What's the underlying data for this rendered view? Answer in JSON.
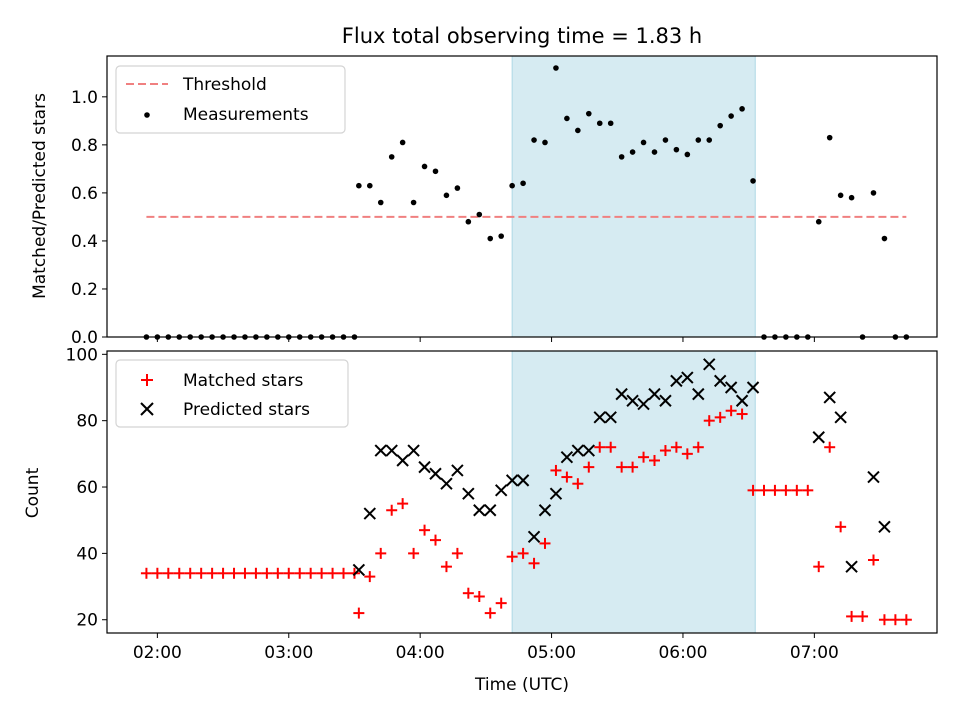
{
  "title": "Flux total observing time = 1.83 h",
  "colors": {
    "threshold": "#f08080",
    "measurement": "#000000",
    "matched": "#ff0000",
    "predicted": "#000000",
    "shade": "#add8e6"
  },
  "chart_data": [
    {
      "type": "scatter",
      "ylabel": "Matched/Predicted stars",
      "ylim": [
        0,
        1.17
      ],
      "yticks": [
        "0.0",
        "0.2",
        "0.4",
        "0.6",
        "0.8",
        "1.0"
      ],
      "shaded_interval": [
        "04:42",
        "06:33"
      ],
      "legend": {
        "placement": "top-left",
        "entries": [
          "Threshold",
          "Measurements"
        ]
      },
      "threshold": {
        "name": "Threshold",
        "value": 0.5,
        "x_range": [
          "01:55",
          "07:42"
        ]
      },
      "series": [
        {
          "name": "Measurements",
          "x": [
            "01:55",
            "02:00",
            "02:05",
            "02:10",
            "02:15",
            "02:20",
            "02:25",
            "02:30",
            "02:35",
            "02:40",
            "02:45",
            "02:50",
            "02:55",
            "03:00",
            "03:05",
            "03:10",
            "03:15",
            "03:20",
            "03:25",
            "03:30",
            "03:32",
            "03:37",
            "03:42",
            "03:47",
            "03:52",
            "03:57",
            "04:02",
            "04:07",
            "04:12",
            "04:17",
            "04:22",
            "04:27",
            "04:32",
            "04:37",
            "04:42",
            "04:47",
            "04:52",
            "04:57",
            "05:02",
            "05:07",
            "05:12",
            "05:17",
            "05:22",
            "05:27",
            "05:32",
            "05:37",
            "05:42",
            "05:47",
            "05:52",
            "05:57",
            "06:02",
            "06:07",
            "06:12",
            "06:17",
            "06:22",
            "06:27",
            "06:32",
            "06:37",
            "06:42",
            "06:47",
            "06:52",
            "06:57",
            "07:02",
            "07:07",
            "07:12",
            "07:17",
            "07:22",
            "07:27",
            "07:32",
            "07:37",
            "07:42"
          ],
          "y": [
            0,
            0,
            0,
            0,
            0,
            0,
            0,
            0,
            0,
            0,
            0,
            0,
            0,
            0,
            0,
            0,
            0,
            0,
            0,
            0,
            0.63,
            0.63,
            0.56,
            0.75,
            0.81,
            0.56,
            0.71,
            0.69,
            0.59,
            0.62,
            0.48,
            0.51,
            0.41,
            0.42,
            0.63,
            0.64,
            0.82,
            0.81,
            1.12,
            0.91,
            0.86,
            0.93,
            0.89,
            0.89,
            0.75,
            0.77,
            0.81,
            0.77,
            0.82,
            0.78,
            0.76,
            0.82,
            0.82,
            0.88,
            0.92,
            0.95,
            0.65,
            0,
            0,
            0,
            0,
            0,
            0.48,
            0.83,
            0.59,
            0.58,
            0,
            0.6,
            0.41,
            0,
            0
          ]
        }
      ]
    },
    {
      "type": "scatter",
      "xlabel": "Time (UTC)",
      "ylabel": "Count",
      "xticks": [
        "02:00",
        "03:00",
        "04:00",
        "05:00",
        "06:00",
        "07:00"
      ],
      "xlim": [
        "01:37",
        "07:56"
      ],
      "ylim": [
        16,
        101
      ],
      "yticks": [
        "20",
        "40",
        "60",
        "80",
        "100"
      ],
      "shaded_interval": [
        "04:42",
        "06:33"
      ],
      "legend": {
        "placement": "top-left",
        "entries": [
          "Matched stars",
          "Predicted stars"
        ]
      },
      "series": [
        {
          "name": "Matched stars",
          "marker": "plus",
          "x": [
            "01:55",
            "02:00",
            "02:05",
            "02:10",
            "02:15",
            "02:20",
            "02:25",
            "02:30",
            "02:35",
            "02:40",
            "02:45",
            "02:50",
            "02:55",
            "03:00",
            "03:05",
            "03:10",
            "03:15",
            "03:20",
            "03:25",
            "03:30",
            "03:32",
            "03:37",
            "03:42",
            "03:47",
            "03:52",
            "03:57",
            "04:02",
            "04:07",
            "04:12",
            "04:17",
            "04:22",
            "04:27",
            "04:32",
            "04:37",
            "04:42",
            "04:47",
            "04:52",
            "04:57",
            "05:02",
            "05:07",
            "05:12",
            "05:17",
            "05:22",
            "05:27",
            "05:32",
            "05:37",
            "05:42",
            "05:47",
            "05:52",
            "05:57",
            "06:02",
            "06:07",
            "06:12",
            "06:17",
            "06:22",
            "06:27",
            "06:32",
            "06:37",
            "06:42",
            "06:47",
            "06:52",
            "06:57",
            "07:02",
            "07:07",
            "07:12",
            "07:17",
            "07:22",
            "07:27",
            "07:32",
            "07:37",
            "07:42"
          ],
          "y": [
            34,
            34,
            34,
            34,
            34,
            34,
            34,
            34,
            34,
            34,
            34,
            34,
            34,
            34,
            34,
            34,
            34,
            34,
            34,
            34,
            22,
            33,
            40,
            53,
            55,
            40,
            47,
            44,
            36,
            40,
            28,
            27,
            22,
            25,
            39,
            40,
            37,
            43,
            65,
            63,
            61,
            66,
            72,
            72,
            66,
            66,
            69,
            68,
            71,
            72,
            70,
            72,
            80,
            81,
            83,
            82,
            59,
            59,
            59,
            59,
            59,
            59,
            36,
            72,
            48,
            21,
            21,
            38,
            20,
            20,
            20
          ]
        },
        {
          "name": "Predicted stars",
          "marker": "x",
          "x": [
            "03:32",
            "03:37",
            "03:42",
            "03:47",
            "03:52",
            "03:57",
            "04:02",
            "04:07",
            "04:12",
            "04:17",
            "04:22",
            "04:27",
            "04:32",
            "04:37",
            "04:42",
            "04:47",
            "04:52",
            "04:57",
            "05:02",
            "05:07",
            "05:12",
            "05:17",
            "05:22",
            "05:27",
            "05:32",
            "05:37",
            "05:42",
            "05:47",
            "05:52",
            "05:57",
            "06:02",
            "06:07",
            "06:12",
            "06:17",
            "06:22",
            "06:27",
            "06:32",
            "07:02",
            "07:07",
            "07:12",
            "07:17",
            "07:27",
            "07:32"
          ],
          "y": [
            35,
            52,
            71,
            71,
            68,
            71,
            66,
            64,
            61,
            65,
            58,
            53,
            53,
            59,
            62,
            62,
            45,
            53,
            58,
            69,
            71,
            71,
            81,
            81,
            88,
            86,
            85,
            88,
            86,
            92,
            93,
            88,
            97,
            92,
            90,
            86,
            90,
            75,
            87,
            81,
            36,
            63,
            48
          ]
        }
      ]
    }
  ]
}
